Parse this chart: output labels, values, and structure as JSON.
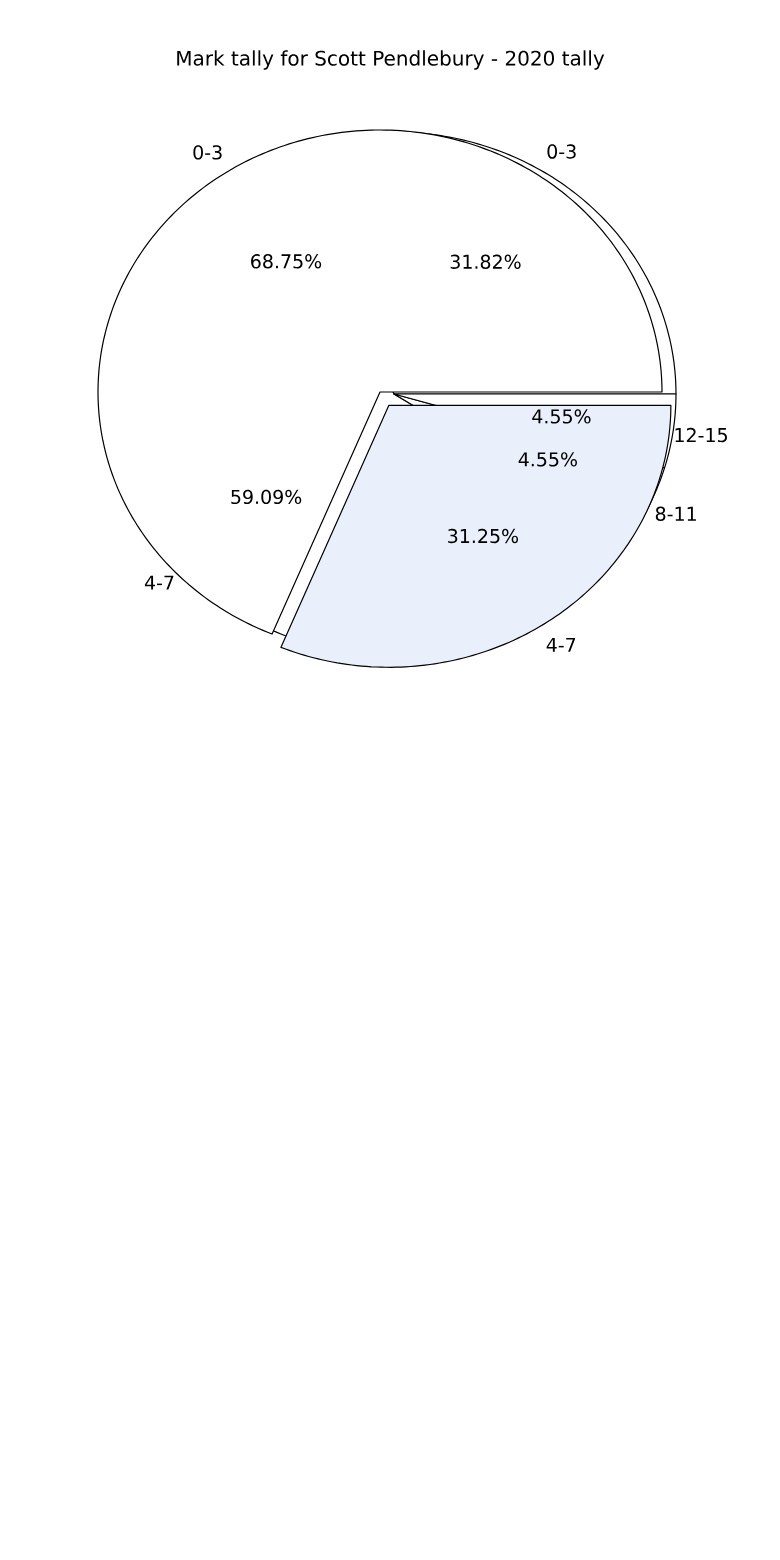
{
  "chart_data": [
    {
      "type": "pie",
      "title": "Mark tally for Scott Pendlebury - 2020 tally",
      "categories": [
        "0-3",
        "4-7"
      ],
      "values": [
        68.75,
        31.25
      ],
      "value_labels": [
        "68.75%",
        "31.25%"
      ],
      "colors": [
        "#ffffff",
        "#eaf0fb"
      ]
    },
    {
      "type": "pie",
      "categories": [
        "0-3",
        "4-7",
        "8-11",
        "12-15"
      ],
      "values": [
        31.82,
        59.09,
        4.55,
        4.55
      ],
      "value_labels": [
        "31.82%",
        "59.09%",
        "4.55%",
        "4.55%"
      ],
      "colors": [
        "#ffffff",
        "#ffffff",
        "#ffffff",
        "#ffffff"
      ]
    }
  ]
}
